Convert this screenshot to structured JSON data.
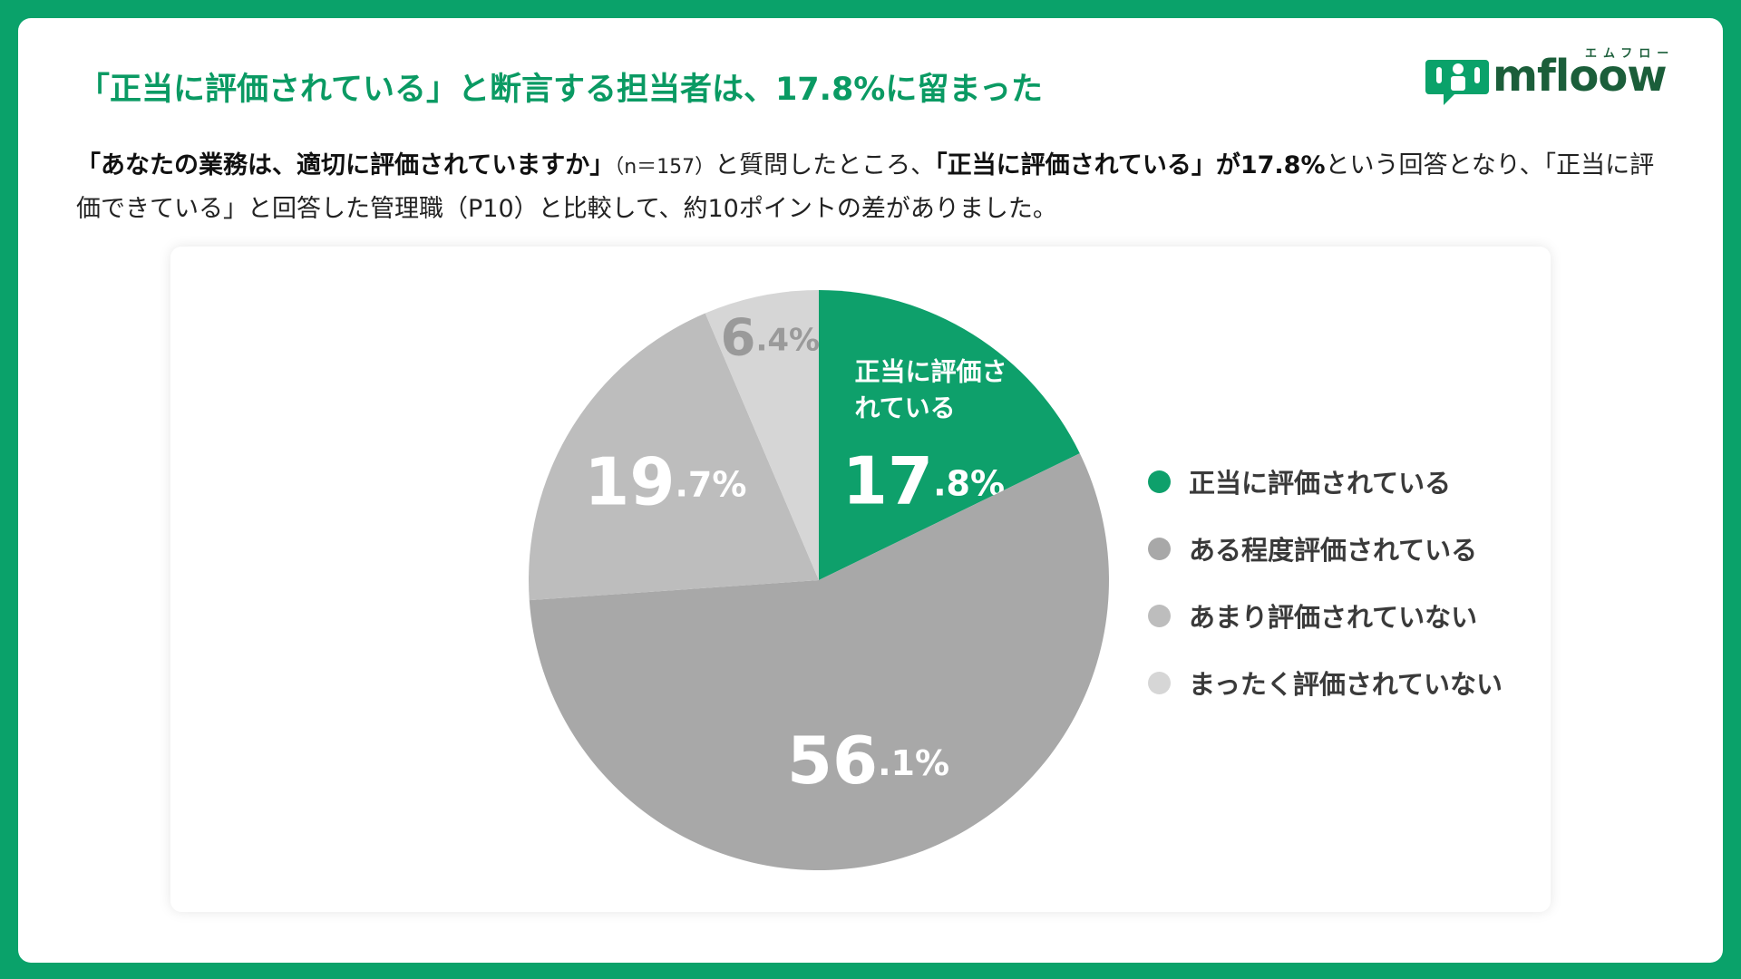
{
  "header": {
    "title": "「正当に評価されている」と断言する担当者は、17.8%に留まった",
    "logo_text": "mfloow",
    "logo_kana": "エムフロー"
  },
  "description": {
    "question": "「あなたの業務は、適切に評価されていますか」",
    "sample": "（n＝157）",
    "text1": "と質問したところ、",
    "highlight": "「正当に評価されている」が17.8%",
    "text2": "という回答となり、「正当に評価できている」と回答した管理職（P10）と比較して、約10ポイントの差がありました。"
  },
  "colors": {
    "frame": "#0aa26a",
    "accent": "#0a9a63",
    "slice_1": "#0ea06b",
    "slice_2": "#a8a8a8",
    "slice_3": "#bdbdbd",
    "slice_4": "#d6d6d6"
  },
  "chart_data": {
    "type": "pie",
    "start": "12 o'clock, clockwise",
    "slices": [
      {
        "label": "正当に評価されている",
        "value": 17.8,
        "int": "17",
        "dec": ".8%",
        "color": "#0ea06b"
      },
      {
        "label": "ある程度評価されている",
        "value": 56.1,
        "int": "56",
        "dec": ".1%",
        "color": "#a8a8a8"
      },
      {
        "label": "あまり評価されていない",
        "value": 19.7,
        "int": "19",
        "dec": ".7%",
        "color": "#bdbdbd"
      },
      {
        "label": "まったく評価されていない",
        "value": 6.4,
        "int": "6",
        "dec": ".4%",
        "color": "#d6d6d6"
      }
    ],
    "inside_label": [
      "正当に評価さ",
      "れている"
    ],
    "legend": [
      "正当に評価されている",
      "ある程度評価されている",
      "あまり評価されていない",
      "まったく評価されていない"
    ],
    "legend_placement": "right"
  }
}
